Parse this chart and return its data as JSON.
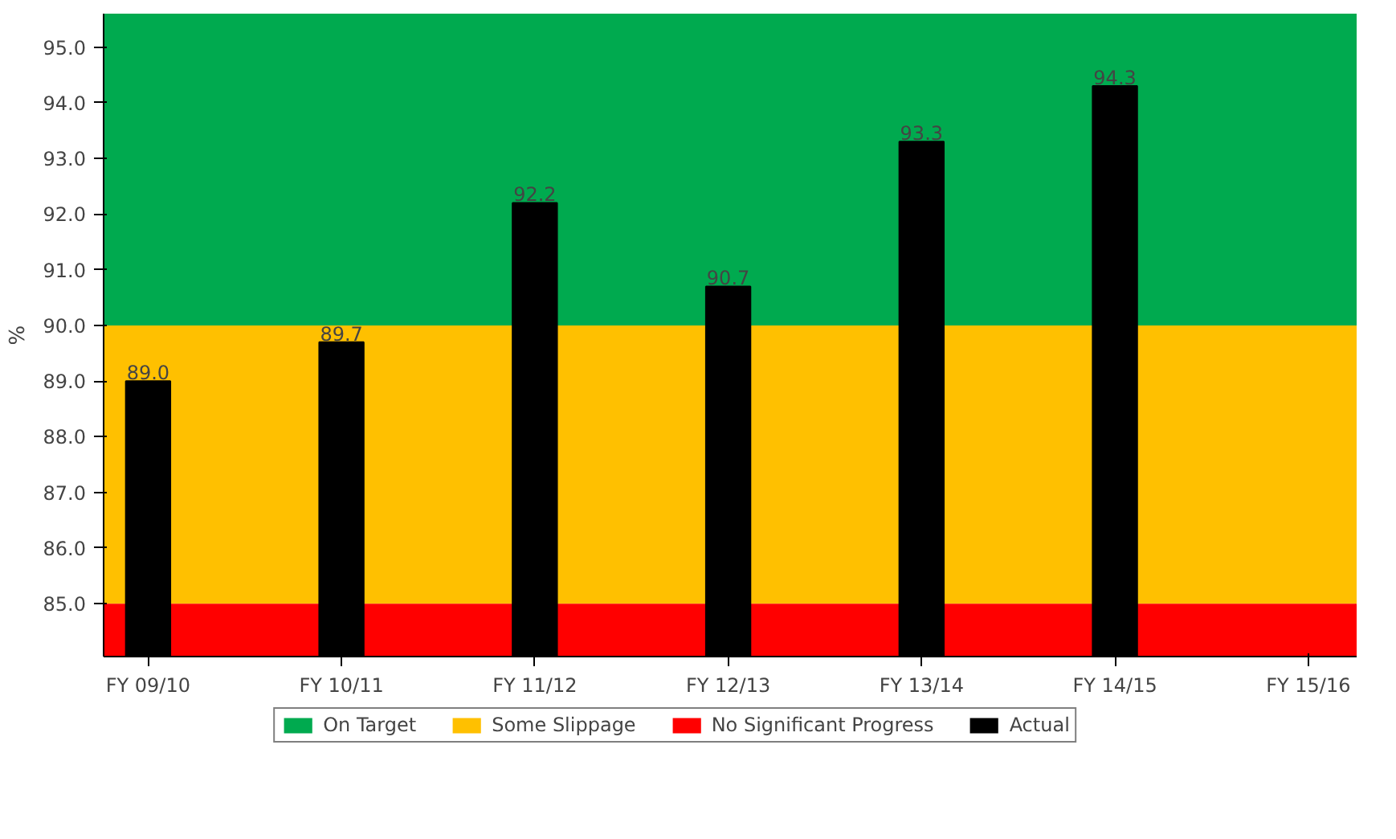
{
  "chart_data": {
    "type": "bar",
    "ylabel": "%",
    "categories": [
      "FY 09/10",
      "FY 10/11",
      "FY 11/12",
      "FY 12/13",
      "FY 13/14",
      "FY 14/15",
      "FY 15/16"
    ],
    "series": [
      {
        "name": "Actual",
        "color": "#000000",
        "values": [
          89.0,
          89.7,
          92.2,
          90.7,
          93.3,
          94.3,
          null
        ],
        "value_labels": [
          "89.0",
          "89.7",
          "92.2",
          "90.7",
          "93.3",
          "94.3",
          null
        ]
      }
    ],
    "ylim": [
      84.05,
      95.6
    ],
    "yticks": [
      {
        "value": 85,
        "label": "85.0"
      },
      {
        "value": 86,
        "label": "86.0"
      },
      {
        "value": 87,
        "label": "87.0"
      },
      {
        "value": 88,
        "label": "88.0"
      },
      {
        "value": 89,
        "label": "89.0"
      },
      {
        "value": 90,
        "label": "90.0"
      },
      {
        "value": 91,
        "label": "91.0"
      },
      {
        "value": 92,
        "label": "92.0"
      },
      {
        "value": 93,
        "label": "93.0"
      },
      {
        "value": 94,
        "label": "94.0"
      },
      {
        "value": 95,
        "label": "95.0"
      }
    ],
    "bands": [
      {
        "axis": "y",
        "from": 90,
        "to": 95.6,
        "label": "On Target",
        "color": "#00aa4f"
      },
      {
        "axis": "y",
        "from": 85,
        "to": 90,
        "label": "Some Slippage",
        "color": "#ffc000"
      },
      {
        "axis": "y",
        "from": 84.05,
        "to": 85,
        "label": "No Significant Progress",
        "color": "#ff0000"
      }
    ],
    "legend": "bottom"
  }
}
